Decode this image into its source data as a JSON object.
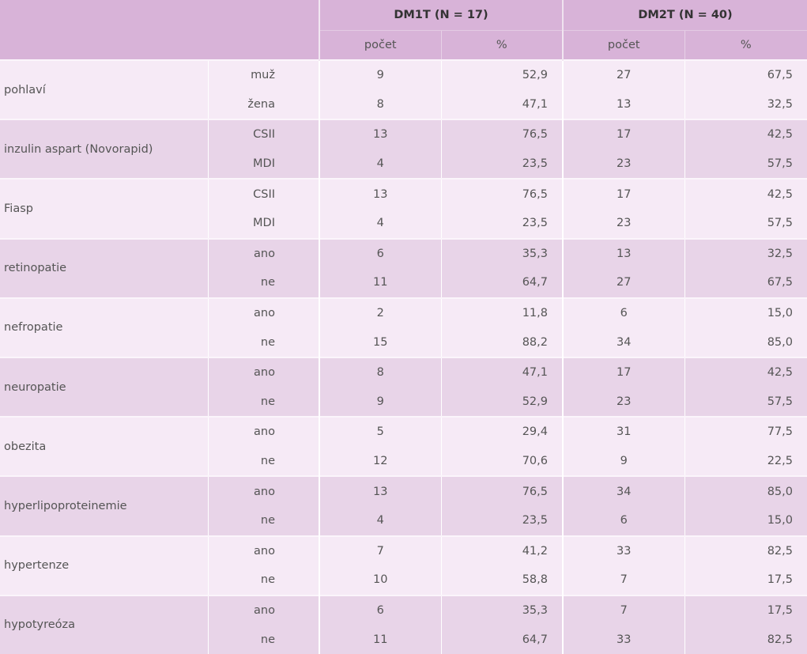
{
  "header": {
    "group1": "DM1T (N = 17)",
    "group2": "DM2T (N = 40)",
    "count_label": "počet",
    "pct_label": "%"
  },
  "groups": [
    {
      "label": "pohlaví",
      "rows": [
        {
          "sub": "muž",
          "c1": "9",
          "p1": "52,9",
          "c2": "27",
          "p2": "67,5"
        },
        {
          "sub": "žena",
          "c1": "8",
          "p1": "47,1",
          "c2": "13",
          "p2": "32,5"
        }
      ]
    },
    {
      "label": "inzulin aspart (Novorapid)",
      "rows": [
        {
          "sub": "CSII",
          "c1": "13",
          "p1": "76,5",
          "c2": "17",
          "p2": "42,5"
        },
        {
          "sub": "MDI",
          "c1": "4",
          "p1": "23,5",
          "c2": "23",
          "p2": "57,5"
        }
      ]
    },
    {
      "label": "Fiasp",
      "rows": [
        {
          "sub": "CSII",
          "c1": "13",
          "p1": "76,5",
          "c2": "17",
          "p2": "42,5"
        },
        {
          "sub": "MDI",
          "c1": "4",
          "p1": "23,5",
          "c2": "23",
          "p2": "57,5"
        }
      ]
    },
    {
      "label": "retinopatie",
      "rows": [
        {
          "sub": "ano",
          "c1": "6",
          "p1": "35,3",
          "c2": "13",
          "p2": "32,5"
        },
        {
          "sub": "ne",
          "c1": "11",
          "p1": "64,7",
          "c2": "27",
          "p2": "67,5"
        }
      ]
    },
    {
      "label": "nefropatie",
      "rows": [
        {
          "sub": "ano",
          "c1": "2",
          "p1": "11,8",
          "c2": "6",
          "p2": "15,0"
        },
        {
          "sub": "ne",
          "c1": "15",
          "p1": "88,2",
          "c2": "34",
          "p2": "85,0"
        }
      ]
    },
    {
      "label": "neuropatie",
      "rows": [
        {
          "sub": "ano",
          "c1": "8",
          "p1": "47,1",
          "c2": "17",
          "p2": "42,5"
        },
        {
          "sub": "ne",
          "c1": "9",
          "p1": "52,9",
          "c2": "23",
          "p2": "57,5"
        }
      ]
    },
    {
      "label": "obezita",
      "rows": [
        {
          "sub": "ano",
          "c1": "5",
          "p1": "29,4",
          "c2": "31",
          "p2": "77,5"
        },
        {
          "sub": "ne",
          "c1": "12",
          "p1": "70,6",
          "c2": "9",
          "p2": "22,5"
        }
      ]
    },
    {
      "label": "hyperlipoproteinemie",
      "rows": [
        {
          "sub": "ano",
          "c1": "13",
          "p1": "76,5",
          "c2": "34",
          "p2": "85,0"
        },
        {
          "sub": "ne",
          "c1": "4",
          "p1": "23,5",
          "c2": "6",
          "p2": "15,0"
        }
      ]
    },
    {
      "label": "hypertenze",
      "rows": [
        {
          "sub": "ano",
          "c1": "7",
          "p1": "41,2",
          "c2": "33",
          "p2": "82,5"
        },
        {
          "sub": "ne",
          "c1": "10",
          "p1": "58,8",
          "c2": "7",
          "p2": "17,5"
        }
      ]
    },
    {
      "label": "hypotyreóza",
      "rows": [
        {
          "sub": "ano",
          "c1": "6",
          "p1": "35,3",
          "c2": "7",
          "p2": "17,5"
        },
        {
          "sub": "ne",
          "c1": "11",
          "p1": "64,7",
          "c2": "33",
          "p2": "82,5"
        }
      ]
    }
  ]
}
